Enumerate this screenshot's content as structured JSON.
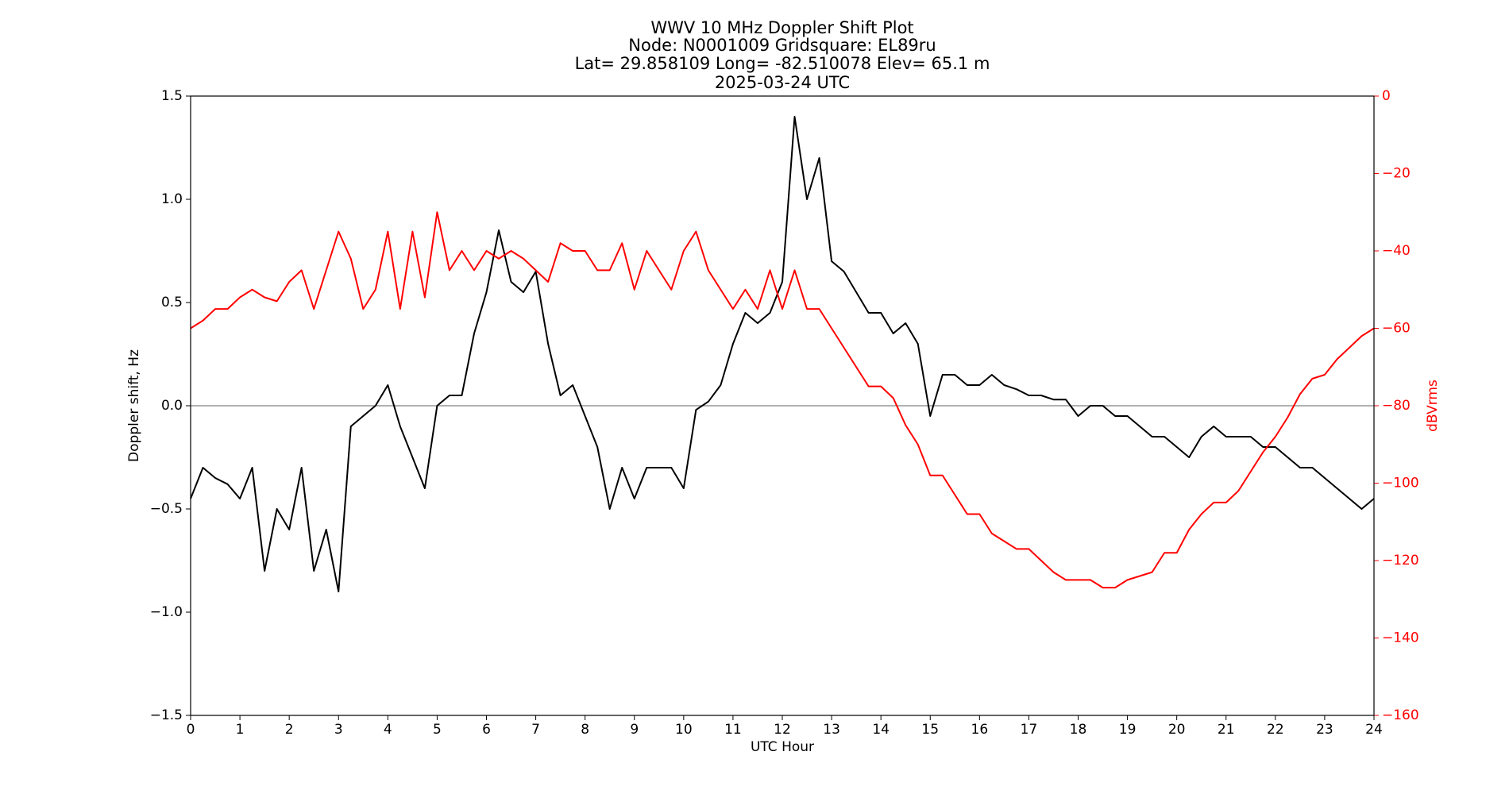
{
  "chart_data": {
    "type": "line",
    "title": [
      "WWV 10 MHz Doppler Shift Plot",
      "Node:  N0001009     Gridsquare:  EL89ru",
      "Lat= 29.858109    Long= -82.510078    Elev= 65.1 m",
      "2025-03-24  UTC"
    ],
    "x_label": "UTC Hour",
    "y_label": "Doppler shift, Hz",
    "y2_label": "dBVrms",
    "x": [
      0,
      0.25,
      0.5,
      0.75,
      1,
      1.25,
      1.5,
      1.75,
      2,
      2.25,
      2.5,
      2.75,
      3,
      3.25,
      3.5,
      3.75,
      4,
      4.25,
      4.5,
      4.75,
      5,
      5.25,
      5.5,
      5.75,
      6,
      6.25,
      6.5,
      6.75,
      7,
      7.25,
      7.5,
      7.75,
      8,
      8.25,
      8.5,
      8.75,
      9,
      9.25,
      9.5,
      9.75,
      10,
      10.25,
      10.5,
      10.75,
      11,
      11.25,
      11.5,
      11.75,
      12,
      12.25,
      12.5,
      12.75,
      13,
      13.25,
      13.5,
      13.75,
      14,
      14.25,
      14.5,
      14.75,
      15,
      15.25,
      15.5,
      15.75,
      16,
      16.25,
      16.5,
      16.75,
      17,
      17.25,
      17.5,
      17.75,
      18,
      18.25,
      18.5,
      18.75,
      19,
      19.25,
      19.5,
      19.75,
      20,
      20.25,
      20.5,
      20.75,
      21,
      21.25,
      21.5,
      21.75,
      22,
      22.25,
      22.5,
      22.75,
      23,
      23.25,
      23.5,
      23.75,
      24
    ],
    "series": [
      {
        "color": "#000000",
        "axis": "y",
        "values": [
          -0.45,
          -0.3,
          -0.35,
          -0.38,
          -0.45,
          -0.3,
          -0.8,
          -0.5,
          -0.6,
          -0.3,
          -0.8,
          -0.6,
          -0.9,
          -0.1,
          -0.05,
          0.0,
          0.1,
          -0.1,
          -0.25,
          -0.4,
          0.0,
          0.05,
          0.05,
          0.35,
          0.55,
          0.85,
          0.6,
          0.55,
          0.65,
          0.3,
          0.05,
          0.1,
          -0.05,
          -0.2,
          -0.5,
          -0.3,
          -0.45,
          -0.3,
          -0.3,
          -0.3,
          -0.4,
          -0.02,
          0.02,
          0.1,
          0.3,
          0.45,
          0.4,
          0.45,
          0.6,
          1.4,
          1.0,
          1.2,
          0.7,
          0.65,
          0.55,
          0.45,
          0.45,
          0.35,
          0.4,
          0.3,
          -0.05,
          0.15,
          0.15,
          0.1,
          0.1,
          0.15,
          0.1,
          0.08,
          0.05,
          0.05,
          0.03,
          0.03,
          -0.05,
          0.0,
          0.0,
          -0.05,
          -0.05,
          -0.1,
          -0.15,
          -0.15,
          -0.2,
          -0.25,
          -0.15,
          -0.1,
          -0.15,
          -0.15,
          -0.15,
          -0.2,
          -0.2,
          -0.25,
          -0.3,
          -0.3,
          -0.35,
          -0.4,
          -0.45,
          -0.5,
          -0.45
        ]
      },
      {
        "color": "#ff0000",
        "axis": "y2",
        "values": [
          -60,
          -58,
          -55,
          -55,
          -52,
          -50,
          -52,
          -53,
          -48,
          -45,
          -55,
          -45,
          -35,
          -42,
          -55,
          -50,
          -35,
          -55,
          -35,
          -52,
          -30,
          -45,
          -40,
          -45,
          -40,
          -42,
          -40,
          -42,
          -45,
          -48,
          -38,
          -40,
          -40,
          -45,
          -45,
          -38,
          -50,
          -40,
          -45,
          -50,
          -40,
          -35,
          -45,
          -50,
          -55,
          -50,
          -55,
          -45,
          -55,
          -45,
          -55,
          -55,
          -60,
          -65,
          -70,
          -75,
          -75,
          -78,
          -85,
          -90,
          -98,
          -98,
          -103,
          -108,
          -108,
          -113,
          -115,
          -117,
          -117,
          -120,
          -123,
          -125,
          -125,
          -125,
          -127,
          -127,
          -125,
          -124,
          -123,
          -118,
          -118,
          -112,
          -108,
          -105,
          -105,
          -102,
          -97,
          -92,
          -88,
          -83,
          -77,
          -73,
          -72,
          -68,
          -65,
          -62,
          -60
        ]
      }
    ],
    "xlim": [
      0,
      24
    ],
    "xticks": [
      0,
      1,
      2,
      3,
      4,
      5,
      6,
      7,
      8,
      9,
      10,
      11,
      12,
      13,
      14,
      15,
      16,
      17,
      18,
      19,
      20,
      21,
      22,
      23,
      24
    ],
    "ylim": [
      -1.5,
      1.5
    ],
    "yticks": [
      {
        "value": -1.5,
        "label": "−1.5"
      },
      {
        "value": -1.0,
        "label": "−1.0"
      },
      {
        "value": -0.5,
        "label": "−0.5"
      },
      {
        "value": 0,
        "label": "0.0"
      },
      {
        "value": 0.5,
        "label": "0.5"
      },
      {
        "value": 1.0,
        "label": "1.0"
      },
      {
        "value": 1.5,
        "label": "1.5"
      }
    ],
    "y2lim": [
      -160,
      0
    ],
    "y2ticks": [
      {
        "value": -160,
        "label": "−160"
      },
      {
        "value": -140,
        "label": "−140"
      },
      {
        "value": -120,
        "label": "−120"
      },
      {
        "value": -100,
        "label": "−100"
      },
      {
        "value": -80,
        "label": "−80"
      },
      {
        "value": -60,
        "label": "−60"
      },
      {
        "value": -40,
        "label": "−40"
      },
      {
        "value": -20,
        "label": "−20"
      },
      0
    ],
    "y2_color": "#ff0000",
    "reference_line": 0,
    "grid": false
  }
}
